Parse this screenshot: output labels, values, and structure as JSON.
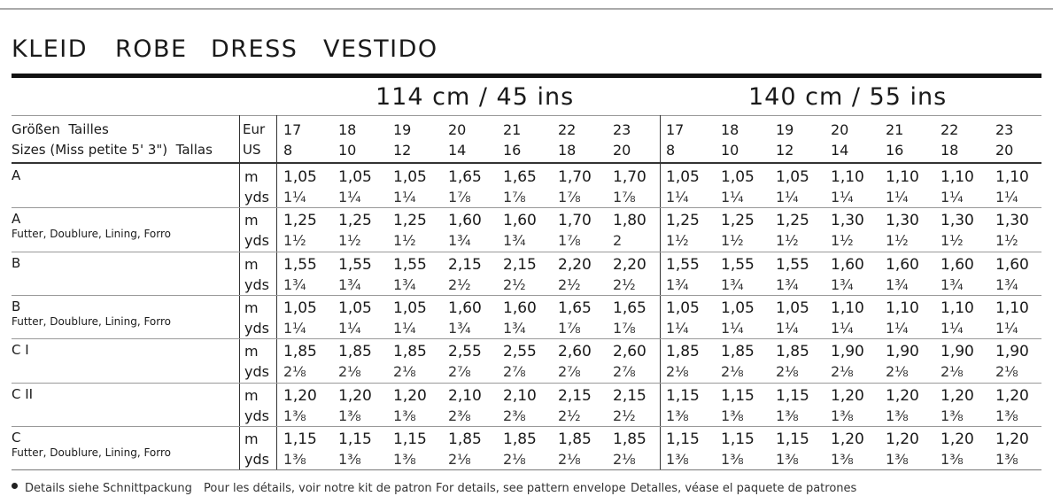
{
  "header": {
    "title_words": [
      "KLEID",
      "ROBE",
      "DRESS",
      "VESTIDO"
    ]
  },
  "table": {
    "widths": [
      "114 cm / 45 ins",
      "140 cm / 55 ins"
    ],
    "size_label": [
      "Größen  Tailles",
      "Sizes (Miss petite 5' 3\")  Tallas"
    ],
    "unit_label": [
      "Eur",
      "US"
    ],
    "sizes_eur": [
      17,
      18,
      19,
      20,
      21,
      22,
      23,
      17,
      18,
      19,
      20,
      21,
      22,
      23
    ],
    "sizes_us": [
      8,
      10,
      12,
      14,
      16,
      18,
      20,
      8,
      10,
      12,
      14,
      16,
      18,
      20
    ],
    "rows": [
      {
        "label": "A",
        "units": [
          "m",
          "yds"
        ],
        "m": [
          "1,05",
          "1,05",
          "1,05",
          "1,65",
          "1,65",
          "1,70",
          "1,70",
          "1,05",
          "1,05",
          "1,05",
          "1,10",
          "1,10",
          "1,10",
          "1,10"
        ],
        "yds": [
          "1¼",
          "1¼",
          "1¼",
          "1⅞",
          "1⅞",
          "1⅞",
          "1⅞",
          "1¼",
          "1¼",
          "1¼",
          "1¼",
          "1¼",
          "1¼",
          "1¼"
        ]
      },
      {
        "label": "A",
        "sublabel": "Futter, Doublure, Lining, Forro",
        "units": [
          "m",
          "yds"
        ],
        "m": [
          "1,25",
          "1,25",
          "1,25",
          "1,60",
          "1,60",
          "1,70",
          "1,80",
          "1,25",
          "1,25",
          "1,25",
          "1,30",
          "1,30",
          "1,30",
          "1,30"
        ],
        "yds": [
          "1½",
          "1½",
          "1½",
          "1¾",
          "1¾",
          "1⅞",
          "2",
          "1½",
          "1½",
          "1½",
          "1½",
          "1½",
          "1½",
          "1½"
        ]
      },
      {
        "label": "B",
        "units": [
          "m",
          "yds"
        ],
        "m": [
          "1,55",
          "1,55",
          "1,55",
          "2,15",
          "2,15",
          "2,20",
          "2,20",
          "1,55",
          "1,55",
          "1,55",
          "1,60",
          "1,60",
          "1,60",
          "1,60"
        ],
        "yds": [
          "1¾",
          "1¾",
          "1¾",
          "2½",
          "2½",
          "2½",
          "2½",
          "1¾",
          "1¾",
          "1¾",
          "1¾",
          "1¾",
          "1¾",
          "1¾"
        ]
      },
      {
        "label": "B",
        "sublabel": "Futter, Doublure, Lining, Forro",
        "units": [
          "m",
          "yds"
        ],
        "m": [
          "1,05",
          "1,05",
          "1,05",
          "1,60",
          "1,60",
          "1,65",
          "1,65",
          "1,05",
          "1,05",
          "1,05",
          "1,10",
          "1,10",
          "1,10",
          "1,10"
        ],
        "yds": [
          "1¼",
          "1¼",
          "1¼",
          "1¾",
          "1¾",
          "1⅞",
          "1⅞",
          "1¼",
          "1¼",
          "1¼",
          "1¼",
          "1¼",
          "1¼",
          "1¼"
        ]
      },
      {
        "label": "C I",
        "units": [
          "m",
          "yds"
        ],
        "m": [
          "1,85",
          "1,85",
          "1,85",
          "2,55",
          "2,55",
          "2,60",
          "2,60",
          "1,85",
          "1,85",
          "1,85",
          "1,90",
          "1,90",
          "1,90",
          "1,90"
        ],
        "yds": [
          "2⅛",
          "2⅛",
          "2⅛",
          "2⅞",
          "2⅞",
          "2⅞",
          "2⅞",
          "2⅛",
          "2⅛",
          "2⅛",
          "2⅛",
          "2⅛",
          "2⅛",
          "2⅛"
        ]
      },
      {
        "label": "C II",
        "units": [
          "m",
          "yds"
        ],
        "m": [
          "1,20",
          "1,20",
          "1,20",
          "2,10",
          "2,10",
          "2,15",
          "2,15",
          "1,15",
          "1,15",
          "1,15",
          "1,20",
          "1,20",
          "1,20",
          "1,20"
        ],
        "yds": [
          "1⅜",
          "1⅜",
          "1⅜",
          "2⅜",
          "2⅜",
          "2½",
          "2½",
          "1⅜",
          "1⅜",
          "1⅜",
          "1⅜",
          "1⅜",
          "1⅜",
          "1⅜"
        ]
      },
      {
        "label": "C",
        "sublabel": "Futter, Doublure, Lining, Forro",
        "units": [
          "m",
          "yds"
        ],
        "m": [
          "1,15",
          "1,15",
          "1,15",
          "1,85",
          "1,85",
          "1,85",
          "1,85",
          "1,15",
          "1,15",
          "1,15",
          "1,20",
          "1,20",
          "1,20",
          "1,20"
        ],
        "yds": [
          "1⅜",
          "1⅜",
          "1⅜",
          "2⅛",
          "2⅛",
          "2⅛",
          "2⅛",
          "1⅜",
          "1⅜",
          "1⅜",
          "1⅜",
          "1⅜",
          "1⅜",
          "1⅜"
        ]
      }
    ]
  },
  "footer": [
    "Details siehe Schnittpackung",
    "Pour les détails, voir notre kit de patron",
    "For details, see pattern envelope",
    "Detalles, véase el paquete de patrones"
  ]
}
